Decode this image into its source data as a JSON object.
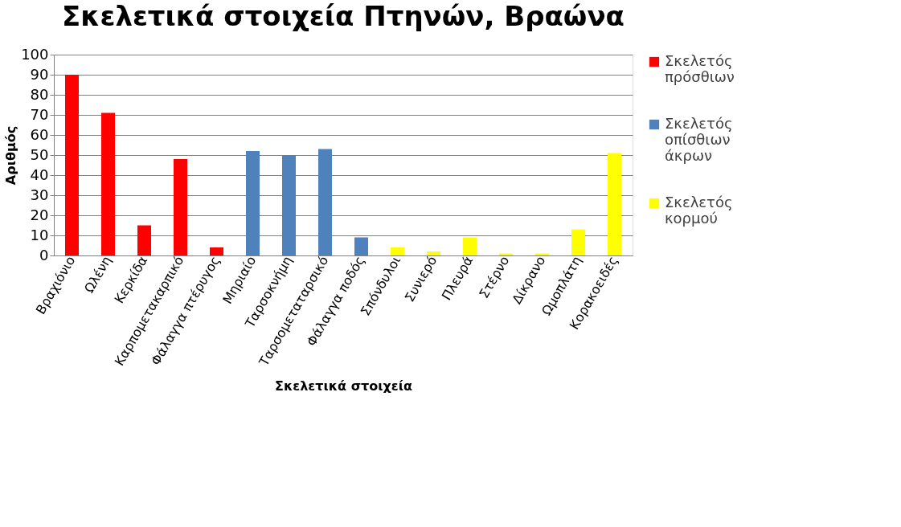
{
  "chart_data": {
    "type": "bar",
    "title": "Σκελετικά στοιχεία  Πτηνών, Βραώνα",
    "xlabel": "Σκελετικά στοιχεία",
    "ylabel": "Αριθμός",
    "categories": [
      "Βραχιόνιο",
      "Ωλένη",
      "Κερκίδα",
      "Καρπομετακαρπικό",
      "Φάλαγγα πτέρυγος",
      "Μηριαίο",
      "Ταρσοκνήμη",
      "Ταρσομεταταρσικό",
      "Φάλαγγα ποδός",
      "Σπόνδυλοι",
      "Συνιερό",
      "Πλευρά",
      "Στέρνο",
      "Δίκρανο",
      "Ωμοπλάτη",
      "Κορακοειδές"
    ],
    "series": [
      {
        "name": "Σκελετός πρόσθιων",
        "color": "#ff0000",
        "values": [
          90,
          71,
          15,
          48,
          4,
          null,
          null,
          null,
          null,
          null,
          null,
          null,
          null,
          null,
          null,
          null
        ]
      },
      {
        "name": "Σκελετός οπίσθιων άκρων",
        "color": "#4f81bd",
        "values": [
          null,
          null,
          null,
          null,
          null,
          52,
          50,
          53,
          9,
          null,
          null,
          null,
          null,
          null,
          null,
          null
        ]
      },
      {
        "name": "Σκελετός κορμού",
        "color": "#ffff00",
        "values": [
          null,
          null,
          null,
          null,
          null,
          null,
          null,
          null,
          null,
          4,
          2,
          9,
          1,
          1,
          13,
          51
        ]
      }
    ],
    "ylim": [
      0,
      100
    ],
    "yticks": [
      0,
      10,
      20,
      30,
      40,
      50,
      60,
      70,
      80,
      90,
      100
    ],
    "grid": "y",
    "legend": "right"
  }
}
